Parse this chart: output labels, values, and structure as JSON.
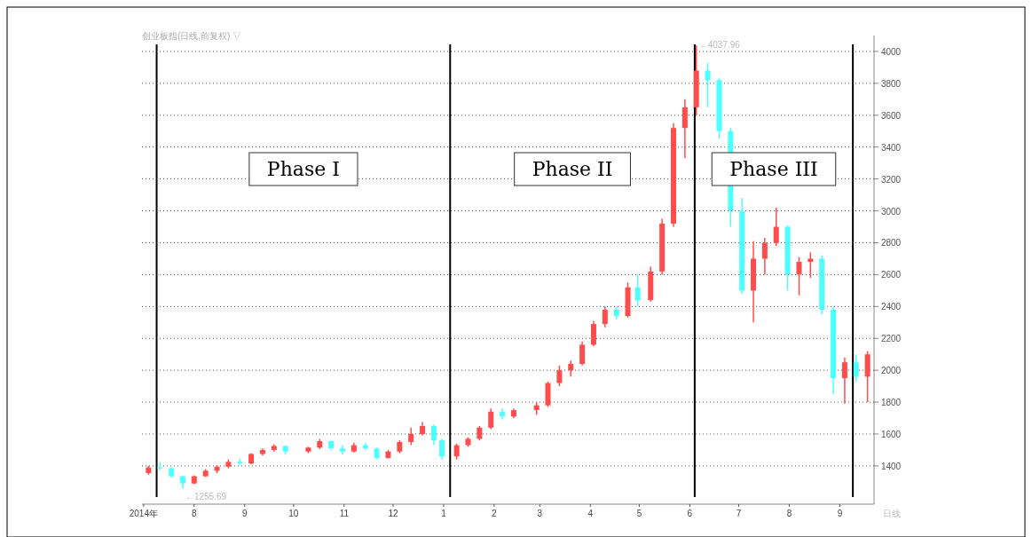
{
  "chart_data": {
    "type": "candlestick",
    "title": "创业板指(日线,前复权) ▽",
    "x": [
      "2014-07-04",
      "2014-07-11",
      "2014-07-18",
      "2014-07-25",
      "2014-08-01",
      "2014-08-08",
      "2014-08-15",
      "2014-08-22",
      "2014-08-29",
      "2014-09-05",
      "2014-09-12",
      "2014-09-19",
      "2014-09-26",
      "2014-10-10",
      "2014-10-17",
      "2014-10-24",
      "2014-10-31",
      "2014-11-07",
      "2014-11-14",
      "2014-11-21",
      "2014-11-28",
      "2014-12-05",
      "2014-12-12",
      "2014-12-19",
      "2014-12-26",
      "2014-12-31",
      "2015-01-09",
      "2015-01-16",
      "2015-01-23",
      "2015-01-30",
      "2015-02-06",
      "2015-02-13",
      "2015-02-27",
      "2015-03-06",
      "2015-03-13",
      "2015-03-20",
      "2015-03-27",
      "2015-04-03",
      "2015-04-10",
      "2015-04-17",
      "2015-04-24",
      "2015-04-30",
      "2015-05-08",
      "2015-05-15",
      "2015-05-22",
      "2015-05-29",
      "2015-06-05",
      "2015-06-12",
      "2015-06-19",
      "2015-06-26",
      "2015-07-03",
      "2015-07-10",
      "2015-07-17",
      "2015-07-24",
      "2015-07-31",
      "2015-08-07",
      "2015-08-14",
      "2015-08-21",
      "2015-08-28",
      "2015-09-04",
      "2015-09-11",
      "2015-09-18"
    ],
    "ohlc": [
      [
        1355,
        1400,
        1345,
        1390
      ],
      [
        1390,
        1425,
        1375,
        1385
      ],
      [
        1385,
        1390,
        1325,
        1335
      ],
      [
        1335,
        1340,
        1255.69,
        1290
      ],
      [
        1290,
        1340,
        1285,
        1335
      ],
      [
        1335,
        1380,
        1330,
        1370
      ],
      [
        1370,
        1405,
        1355,
        1395
      ],
      [
        1395,
        1440,
        1385,
        1425
      ],
      [
        1425,
        1445,
        1405,
        1415
      ],
      [
        1415,
        1480,
        1410,
        1475
      ],
      [
        1475,
        1510,
        1465,
        1500
      ],
      [
        1500,
        1535,
        1490,
        1525
      ],
      [
        1525,
        1530,
        1470,
        1490
      ],
      [
        1490,
        1520,
        1480,
        1515
      ],
      [
        1515,
        1570,
        1505,
        1555
      ],
      [
        1555,
        1560,
        1500,
        1510
      ],
      [
        1510,
        1530,
        1470,
        1490
      ],
      [
        1490,
        1545,
        1485,
        1530
      ],
      [
        1530,
        1545,
        1500,
        1510
      ],
      [
        1510,
        1515,
        1440,
        1450
      ],
      [
        1450,
        1500,
        1445,
        1490
      ],
      [
        1490,
        1560,
        1480,
        1550
      ],
      [
        1550,
        1640,
        1530,
        1600
      ],
      [
        1600,
        1675,
        1590,
        1650
      ],
      [
        1650,
        1660,
        1530,
        1560
      ],
      [
        1560,
        1570,
        1440,
        1460
      ],
      [
        1460,
        1540,
        1440,
        1530
      ],
      [
        1530,
        1580,
        1520,
        1570
      ],
      [
        1570,
        1650,
        1560,
        1640
      ],
      [
        1640,
        1760,
        1630,
        1740
      ],
      [
        1740,
        1760,
        1690,
        1710
      ],
      [
        1710,
        1760,
        1700,
        1750
      ],
      [
        1750,
        1800,
        1720,
        1780
      ],
      [
        1780,
        1930,
        1770,
        1920
      ],
      [
        1920,
        2030,
        1900,
        2000
      ],
      [
        2000,
        2060,
        1960,
        2040
      ],
      [
        2040,
        2180,
        2030,
        2160
      ],
      [
        2160,
        2310,
        2150,
        2290
      ],
      [
        2290,
        2400,
        2270,
        2380
      ],
      [
        2380,
        2400,
        2320,
        2340
      ],
      [
        2340,
        2550,
        2330,
        2520
      ],
      [
        2520,
        2600,
        2400,
        2440
      ],
      [
        2440,
        2650,
        2430,
        2620
      ],
      [
        2620,
        2950,
        2600,
        2920
      ],
      [
        2920,
        3550,
        2900,
        3520
      ],
      [
        3520,
        3700,
        3330,
        3650
      ],
      [
        3650,
        4037.96,
        3600,
        3880
      ],
      [
        3880,
        3930,
        3650,
        3820
      ],
      [
        3820,
        3830,
        3450,
        3500
      ],
      [
        3500,
        3520,
        2900,
        3000
      ],
      [
        3000,
        3080,
        2480,
        2500
      ],
      [
        2500,
        2810,
        2300,
        2700
      ],
      [
        2700,
        2830,
        2600,
        2800
      ],
      [
        2800,
        3020,
        2780,
        2900
      ],
      [
        2900,
        2910,
        2500,
        2600
      ],
      [
        2600,
        2710,
        2470,
        2680
      ],
      [
        2680,
        2740,
        2580,
        2700
      ],
      [
        2700,
        2720,
        2350,
        2380
      ],
      [
        2380,
        2400,
        1850,
        1950
      ],
      [
        1950,
        2080,
        1790,
        2050
      ],
      [
        2050,
        2100,
        1930,
        1960
      ],
      [
        1960,
        2120,
        1800,
        2100
      ]
    ],
    "colors": [
      "#ff4d4d",
      "#4dffff",
      "#4dffff",
      "#4dffff",
      "#ff4d4d",
      "#ff4d4d",
      "#ff4d4d",
      "#ff4d4d",
      "#4dffff",
      "#ff4d4d",
      "#ff4d4d",
      "#ff4d4d",
      "#4dffff",
      "#ff4d4d",
      "#ff4d4d",
      "#4dffff",
      "#4dffff",
      "#ff4d4d",
      "#4dffff",
      "#4dffff",
      "#ff4d4d",
      "#ff4d4d",
      "#ff4d4d",
      "#ff4d4d",
      "#4dffff",
      "#4dffff",
      "#ff4d4d",
      "#ff4d4d",
      "#ff4d4d",
      "#ff4d4d",
      "#4dffff",
      "#ff4d4d",
      "#ff4d4d",
      "#ff4d4d",
      "#ff4d4d",
      "#ff4d4d",
      "#ff4d4d",
      "#ff4d4d",
      "#ff4d4d",
      "#4dffff",
      "#ff4d4d",
      "#4dffff",
      "#ff4d4d",
      "#ff4d4d",
      "#ff4d4d",
      "#ff4d4d",
      "#ff4d4d",
      "#4dffff",
      "#4dffff",
      "#4dffff",
      "#4dffff",
      "#ff4d4d",
      "#ff4d4d",
      "#ff4d4d",
      "#4dffff",
      "#ff4d4d",
      "#ff4d4d",
      "#4dffff",
      "#4dffff",
      "#ff4d4d",
      "#4dffff",
      "#ff4d4d"
    ],
    "xlim": [
      "2014-06-30",
      "2015-09-22"
    ],
    "xticks": [
      {
        "value": "2014-07-01",
        "label": "2014年"
      },
      {
        "value": "2014-08-01",
        "label": "8"
      },
      {
        "value": "2014-09-01",
        "label": "9"
      },
      {
        "value": "2014-10-01",
        "label": "10"
      },
      {
        "value": "2014-11-01",
        "label": "11"
      },
      {
        "value": "2014-12-01",
        "label": "12"
      },
      {
        "value": "2015-01-01",
        "label": "1"
      },
      {
        "value": "2015-02-01",
        "label": "2"
      },
      {
        "value": "2015-03-01",
        "label": "3"
      },
      {
        "value": "2015-04-01",
        "label": "4"
      },
      {
        "value": "2015-05-01",
        "label": "5"
      },
      {
        "value": "2015-06-01",
        "label": "6"
      },
      {
        "value": "2015-07-01",
        "label": "7"
      },
      {
        "value": "2015-08-01",
        "label": "8"
      },
      {
        "value": "2015-09-01",
        "label": "9"
      }
    ],
    "ylim": [
      1160,
      4100
    ],
    "yticks": [
      1400,
      1600,
      1800,
      2000,
      2200,
      2400,
      2600,
      2800,
      3000,
      3200,
      3400,
      3600,
      3800,
      4000
    ],
    "grid": "y",
    "ref_lines": [
      {
        "axis": "x",
        "value": "2014-07-09",
        "color": "#000000"
      },
      {
        "axis": "x",
        "value": "2015-01-05",
        "color": "#000000"
      },
      {
        "axis": "x",
        "value": "2015-06-04",
        "color": "#000000"
      },
      {
        "axis": "x",
        "value": "2015-09-09",
        "color": "#000000"
      }
    ],
    "annotations": [
      "Phase I",
      "Phase II",
      "Phase III",
      {
        "text": "←1255.69",
        "x": "2014-07-25",
        "y": 1255.69
      },
      {
        "text": "←4037.96",
        "x": "2015-06-05",
        "y": 4037.96
      },
      "日线"
    ]
  }
}
